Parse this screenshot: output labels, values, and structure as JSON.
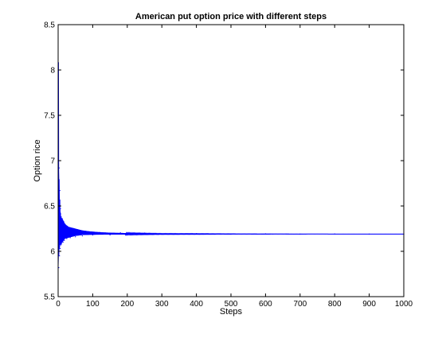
{
  "chart_data": {
    "type": "line",
    "title": "American put option price with different steps",
    "xlabel": "Steps",
    "ylabel": "Option rice",
    "xlim": [
      0,
      1000
    ],
    "ylim": [
      5.5,
      8.5
    ],
    "x_ticks": [
      0,
      100,
      200,
      300,
      400,
      500,
      600,
      700,
      800,
      900,
      1000
    ],
    "x_tick_labels": [
      "0",
      "100",
      "200",
      "300",
      "400",
      "500",
      "600",
      "700",
      "800",
      "900",
      "1000"
    ],
    "y_ticks": [
      5.5,
      6,
      6.5,
      7,
      7.5,
      8,
      8.5
    ],
    "y_tick_labels": [
      "5.5",
      "6",
      "6.5",
      "7",
      "7.5",
      "8",
      "8.5"
    ],
    "grid": false,
    "legend": "none",
    "series": [
      {
        "color": "#0000ff",
        "converged_value": 6.19,
        "x": [
          1,
          2,
          3,
          4,
          5,
          6,
          7,
          8,
          9,
          10,
          12,
          14,
          16,
          18,
          20,
          25,
          30,
          35,
          40,
          50,
          60,
          70,
          80,
          100,
          120,
          150,
          180,
          200,
          250,
          300,
          400,
          500,
          600,
          700,
          800,
          900,
          1000
        ],
        "y": [
          8.08,
          5.82,
          6.92,
          5.95,
          6.67,
          6.03,
          6.47,
          6.07,
          6.38,
          6.08,
          6.36,
          6.1,
          6.33,
          6.12,
          6.3,
          6.14,
          6.26,
          6.15,
          6.25,
          6.16,
          6.23,
          6.17,
          6.22,
          6.18,
          6.21,
          6.18,
          6.205,
          6.185,
          6.2,
          6.188,
          6.195,
          6.189,
          6.193,
          6.19,
          6.192,
          6.19,
          6.191
        ],
        "upper_envelope_y": [
          8.08,
          6.92,
          6.67,
          6.47,
          6.38,
          6.36,
          6.33,
          6.3,
          6.27,
          6.26,
          6.25,
          6.23,
          6.22,
          6.21,
          6.205,
          6.2,
          6.197,
          6.195,
          6.194,
          6.193,
          6.192,
          6.191,
          6.191
        ],
        "lower_envelope_y": [
          5.82,
          5.95,
          6.03,
          6.07,
          6.08,
          6.1,
          6.12,
          6.14,
          6.15,
          6.16,
          6.17,
          6.18,
          6.182,
          6.184,
          6.185,
          6.186,
          6.187,
          6.188,
          6.188,
          6.189,
          6.189,
          6.19,
          6.19
        ],
        "envelope_x": [
          1,
          2,
          4,
          6,
          8,
          12,
          16,
          20,
          30,
          40,
          50,
          70,
          90,
          120,
          150,
          200,
          250,
          300,
          400,
          500,
          600,
          800,
          1000
        ]
      }
    ]
  }
}
